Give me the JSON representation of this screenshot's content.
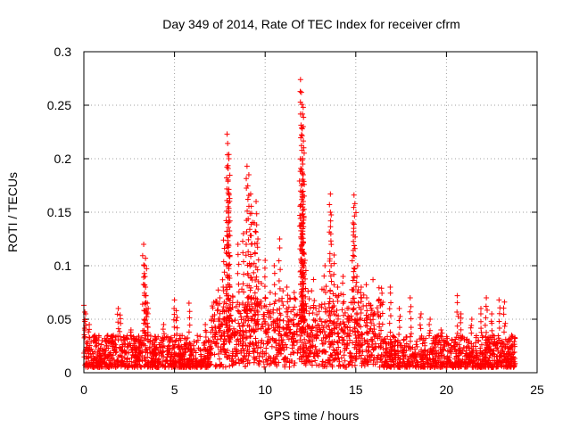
{
  "chart_data": {
    "type": "scatter",
    "title": "Day 349 of 2014, Rate Of TEC Index for receiver cfrm",
    "xlabel": "GPS time / hours",
    "ylabel": "ROTI / TECUs",
    "xlim": [
      0,
      25
    ],
    "ylim": [
      0,
      0.3
    ],
    "xticks": [
      "0",
      "5",
      "10",
      "15",
      "20",
      "25"
    ],
    "yticks": [
      "0",
      "0.05",
      "0.1",
      "0.15",
      "0.2",
      "0.25",
      "0.3"
    ],
    "xtick_values": [
      0,
      5,
      10,
      15,
      20,
      25
    ],
    "ytick_values": [
      0,
      0.05,
      0.1,
      0.15,
      0.2,
      0.25,
      0.3
    ],
    "grid": true,
    "marker": "+",
    "color": "#ff0000",
    "series": [
      {
        "name": "ROTI",
        "baseline_x_range": [
          0,
          23.8
        ],
        "baseline_y_range": [
          0.005,
          0.035
        ],
        "spikes": [
          {
            "x": 0.0,
            "y": 0.063
          },
          {
            "x": 0.1,
            "y": 0.055
          },
          {
            "x": 0.3,
            "y": 0.045
          },
          {
            "x": 0.6,
            "y": 0.035
          },
          {
            "x": 1.2,
            "y": 0.03
          },
          {
            "x": 1.9,
            "y": 0.06
          },
          {
            "x": 2.0,
            "y": 0.054
          },
          {
            "x": 2.6,
            "y": 0.04
          },
          {
            "x": 3.3,
            "y": 0.12
          },
          {
            "x": 3.4,
            "y": 0.107
          },
          {
            "x": 3.35,
            "y": 0.1
          },
          {
            "x": 3.4,
            "y": 0.08
          },
          {
            "x": 3.5,
            "y": 0.065
          },
          {
            "x": 3.55,
            "y": 0.06
          },
          {
            "x": 4.4,
            "y": 0.045
          },
          {
            "x": 5.0,
            "y": 0.068
          },
          {
            "x": 5.1,
            "y": 0.058
          },
          {
            "x": 5.8,
            "y": 0.065
          },
          {
            "x": 6.7,
            "y": 0.045
          },
          {
            "x": 7.2,
            "y": 0.05
          },
          {
            "x": 7.5,
            "y": 0.07
          },
          {
            "x": 7.7,
            "y": 0.124
          },
          {
            "x": 7.9,
            "y": 0.223
          },
          {
            "x": 8.0,
            "y": 0.204
          },
          {
            "x": 8.0,
            "y": 0.2
          },
          {
            "x": 7.95,
            "y": 0.179
          },
          {
            "x": 8.0,
            "y": 0.166
          },
          {
            "x": 7.9,
            "y": 0.128
          },
          {
            "x": 8.5,
            "y": 0.12
          },
          {
            "x": 8.8,
            "y": 0.13
          },
          {
            "x": 9.0,
            "y": 0.193
          },
          {
            "x": 9.1,
            "y": 0.185
          },
          {
            "x": 9.2,
            "y": 0.167
          },
          {
            "x": 9.25,
            "y": 0.149
          },
          {
            "x": 9.4,
            "y": 0.14
          },
          {
            "x": 9.6,
            "y": 0.125
          },
          {
            "x": 9.5,
            "y": 0.16
          },
          {
            "x": 10.0,
            "y": 0.105
          },
          {
            "x": 10.5,
            "y": 0.1
          },
          {
            "x": 10.8,
            "y": 0.125
          },
          {
            "x": 11.2,
            "y": 0.08
          },
          {
            "x": 11.6,
            "y": 0.075
          },
          {
            "x": 11.95,
            "y": 0.274
          },
          {
            "x": 12.0,
            "y": 0.262
          },
          {
            "x": 12.1,
            "y": 0.248
          },
          {
            "x": 12.1,
            "y": 0.23
          },
          {
            "x": 12.05,
            "y": 0.2
          },
          {
            "x": 12.1,
            "y": 0.185
          },
          {
            "x": 12.0,
            "y": 0.175
          },
          {
            "x": 12.1,
            "y": 0.16
          },
          {
            "x": 12.0,
            "y": 0.14
          },
          {
            "x": 12.05,
            "y": 0.13
          },
          {
            "x": 12.2,
            "y": 0.105
          },
          {
            "x": 12.8,
            "y": 0.06
          },
          {
            "x": 13.3,
            "y": 0.1
          },
          {
            "x": 13.6,
            "y": 0.167
          },
          {
            "x": 13.6,
            "y": 0.15
          },
          {
            "x": 13.8,
            "y": 0.11
          },
          {
            "x": 14.0,
            "y": 0.08
          },
          {
            "x": 14.3,
            "y": 0.09
          },
          {
            "x": 14.9,
            "y": 0.166
          },
          {
            "x": 14.95,
            "y": 0.158
          },
          {
            "x": 14.85,
            "y": 0.14
          },
          {
            "x": 15.1,
            "y": 0.1
          },
          {
            "x": 15.3,
            "y": 0.08
          },
          {
            "x": 15.6,
            "y": 0.07
          },
          {
            "x": 16.0,
            "y": 0.055
          },
          {
            "x": 16.9,
            "y": 0.08
          },
          {
            "x": 17.4,
            "y": 0.06
          },
          {
            "x": 18.0,
            "y": 0.07
          },
          {
            "x": 18.6,
            "y": 0.055
          },
          {
            "x": 19.1,
            "y": 0.05
          },
          {
            "x": 19.7,
            "y": 0.04
          },
          {
            "x": 20.6,
            "y": 0.072
          },
          {
            "x": 20.8,
            "y": 0.055
          },
          {
            "x": 21.4,
            "y": 0.05
          },
          {
            "x": 21.9,
            "y": 0.06
          },
          {
            "x": 22.2,
            "y": 0.07
          },
          {
            "x": 22.5,
            "y": 0.055
          },
          {
            "x": 22.9,
            "y": 0.068
          },
          {
            "x": 23.2,
            "y": 0.066
          },
          {
            "x": 23.6,
            "y": 0.035
          }
        ]
      }
    ]
  }
}
